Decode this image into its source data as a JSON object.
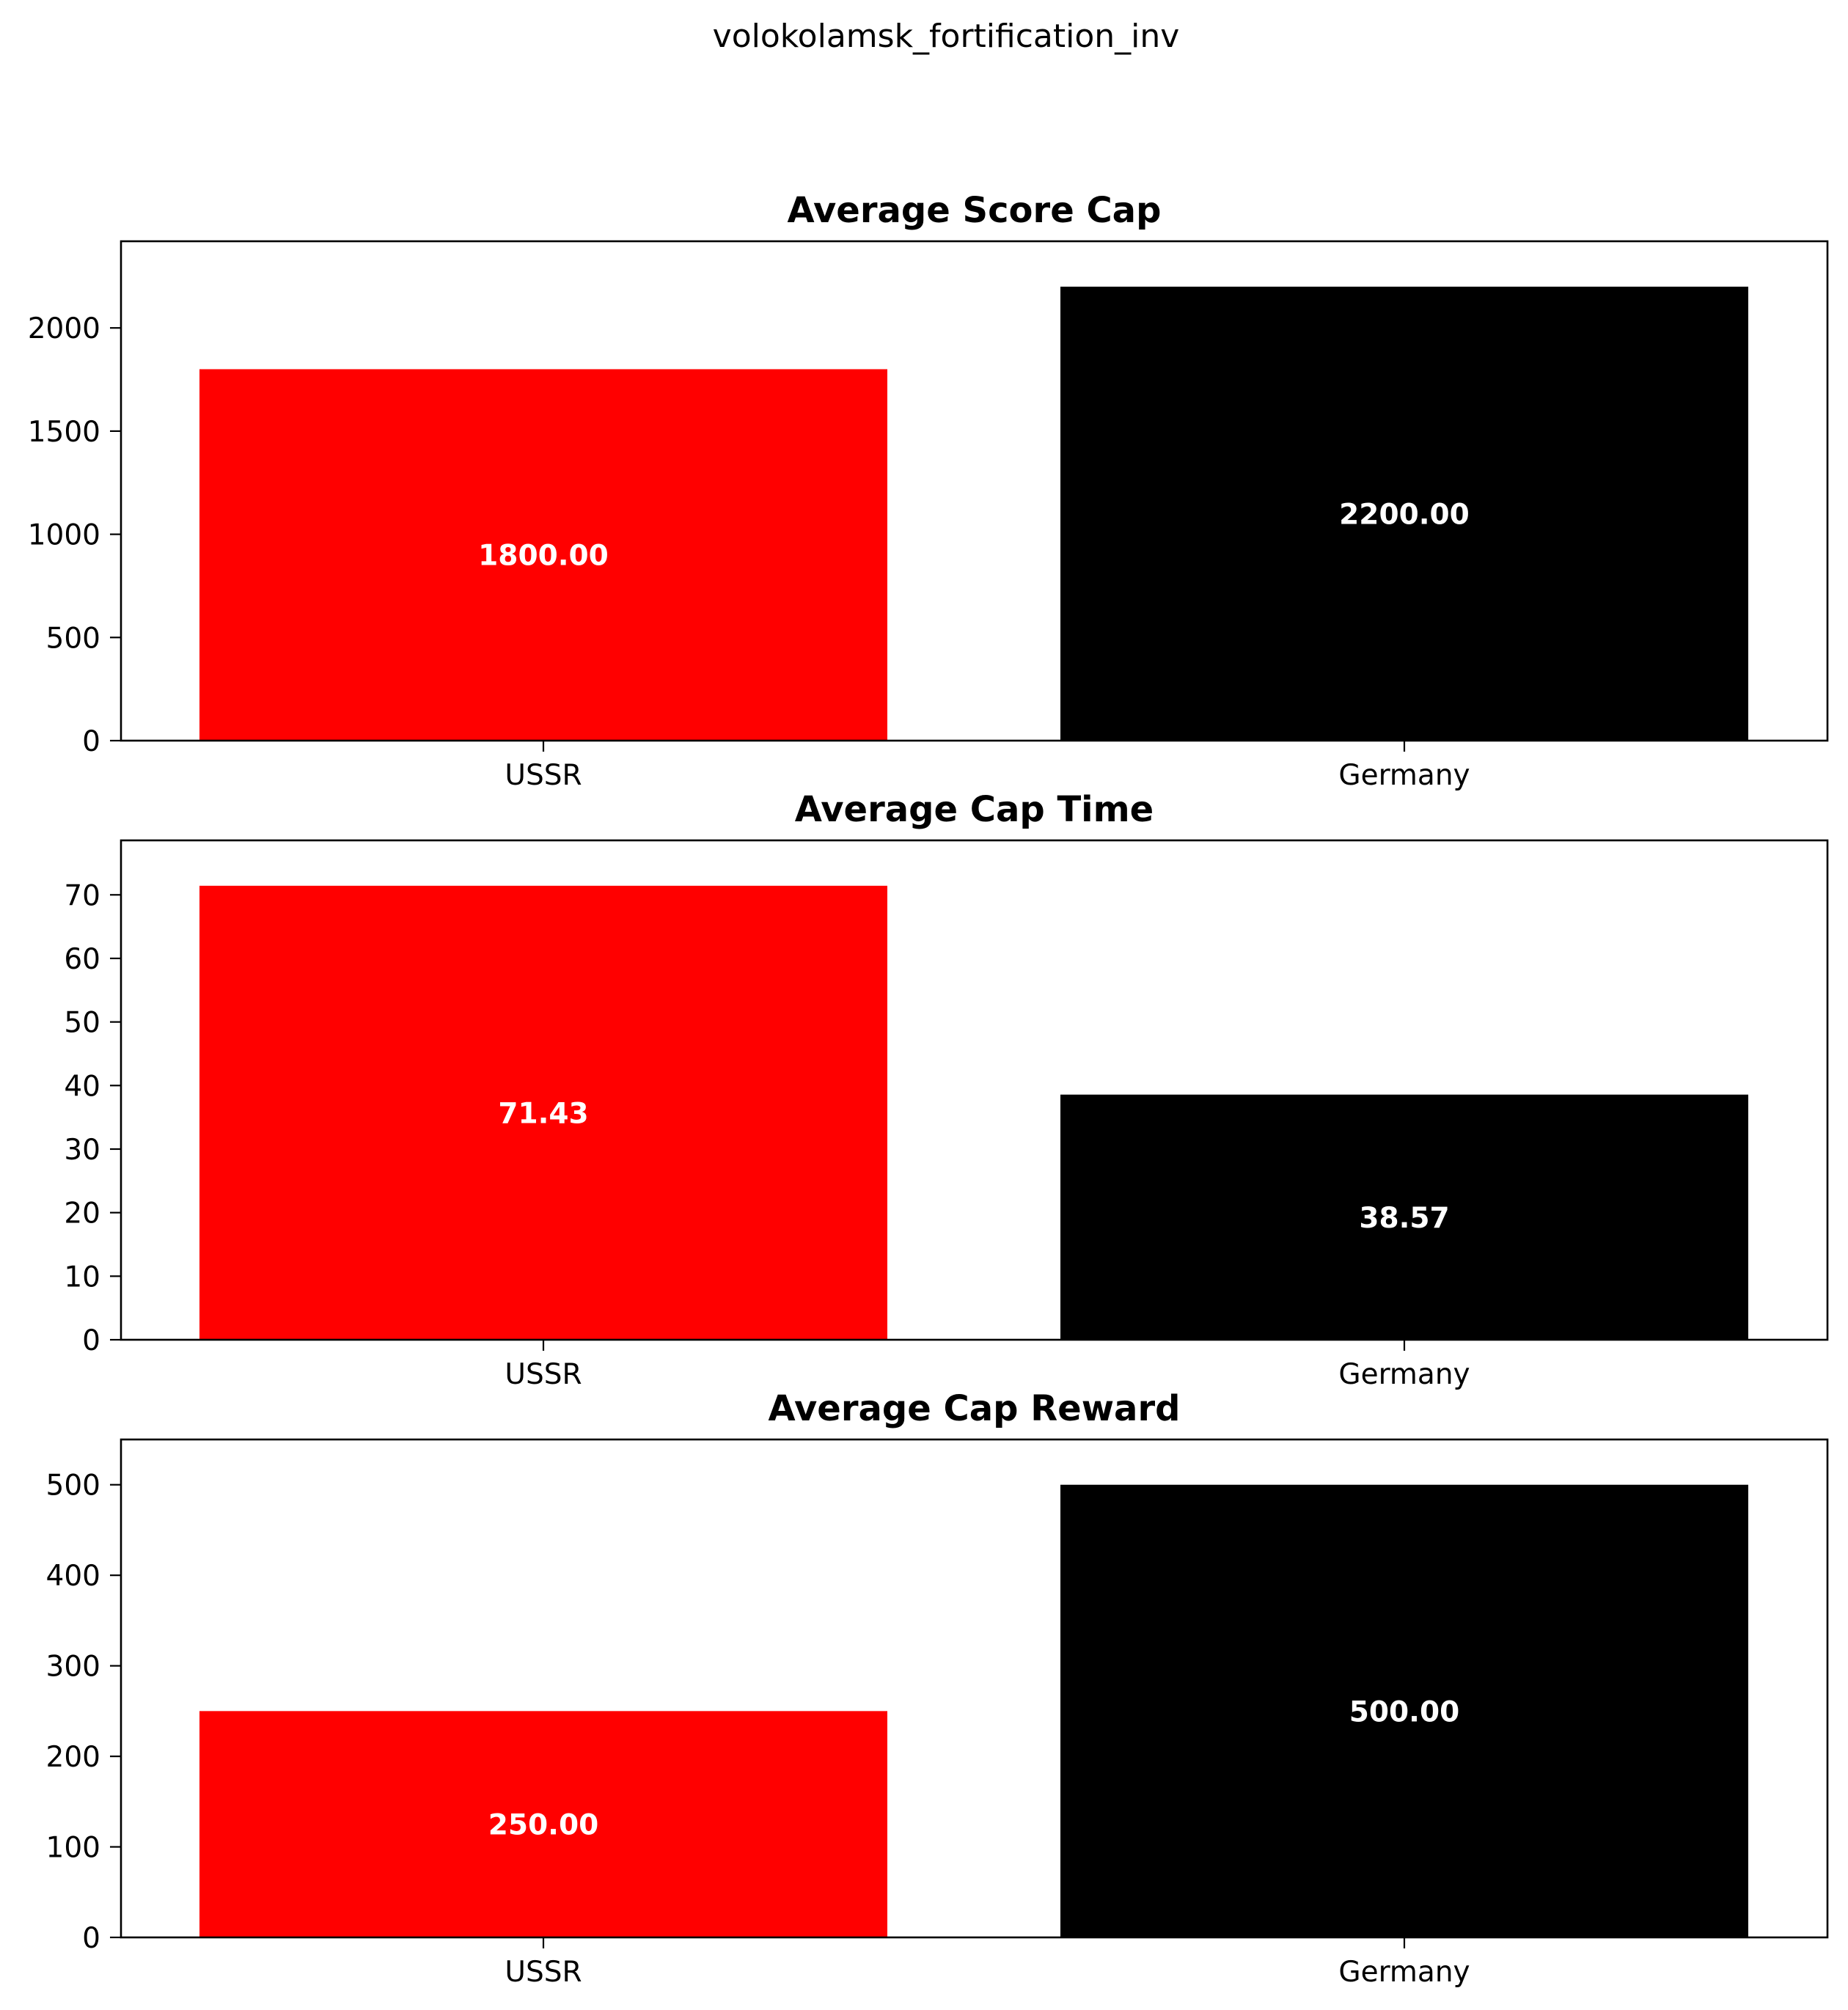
{
  "figure": {
    "suptitle": "volokolamsk_fortification_inv"
  },
  "chart_data": [
    {
      "type": "bar",
      "title": "Average Score Cap",
      "categories": [
        "USSR",
        "Germany"
      ],
      "values": [
        1800.0,
        2200.0
      ],
      "value_labels": [
        "1800.00",
        "2200.00"
      ],
      "colors": [
        "#ff0000",
        "#000000"
      ],
      "ylim": [
        0,
        2420
      ],
      "yticks": [
        0,
        500,
        1000,
        1500,
        2000
      ],
      "ytick_labels": [
        "0",
        "500",
        "1000",
        "1500",
        "2000"
      ],
      "xlabel": "",
      "ylabel": "",
      "grid": false,
      "legend": false
    },
    {
      "type": "bar",
      "title": "Average Cap Time",
      "categories": [
        "USSR",
        "Germany"
      ],
      "values": [
        71.43,
        38.57
      ],
      "value_labels": [
        "71.43",
        "38.57"
      ],
      "colors": [
        "#ff0000",
        "#000000"
      ],
      "ylim": [
        0,
        78.57
      ],
      "yticks": [
        0,
        10,
        20,
        30,
        40,
        50,
        60,
        70
      ],
      "ytick_labels": [
        "0",
        "10",
        "20",
        "30",
        "40",
        "50",
        "60",
        "70"
      ],
      "xlabel": "",
      "ylabel": "",
      "grid": false,
      "legend": false
    },
    {
      "type": "bar",
      "title": "Average Cap Reward",
      "categories": [
        "USSR",
        "Germany"
      ],
      "values": [
        250.0,
        500.0
      ],
      "value_labels": [
        "250.00",
        "500.00"
      ],
      "colors": [
        "#ff0000",
        "#000000"
      ],
      "ylim": [
        0,
        550
      ],
      "yticks": [
        0,
        100,
        200,
        300,
        400,
        500
      ],
      "ytick_labels": [
        "0",
        "100",
        "200",
        "300",
        "400",
        "500"
      ],
      "xlabel": "",
      "ylabel": "",
      "grid": false,
      "legend": false
    }
  ]
}
